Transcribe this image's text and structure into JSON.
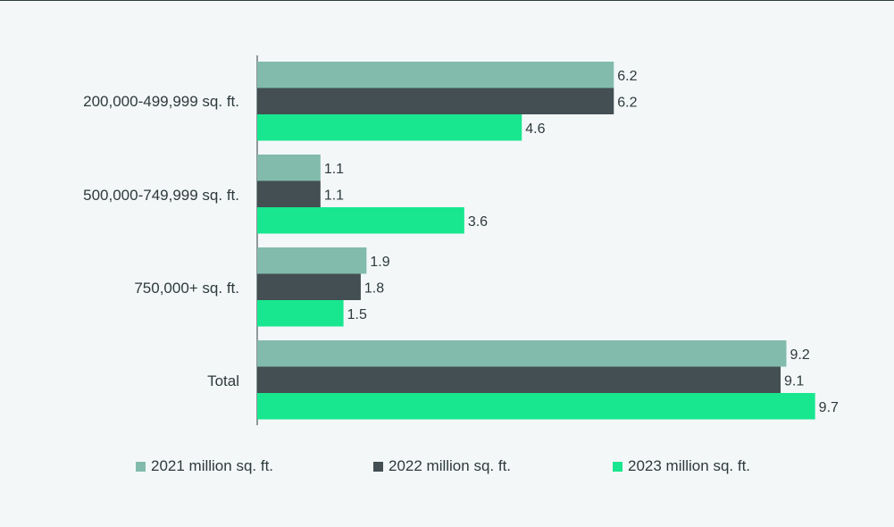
{
  "chart_data": {
    "type": "bar",
    "orientation": "horizontal",
    "categories": [
      "200,000-499,999 sq. ft.",
      "500,000-749,999 sq. ft.",
      "750,000+ sq. ft.",
      "Total"
    ],
    "series": [
      {
        "name": "2021 million sq. ft.",
        "color": "#82bbac",
        "values": [
          6.2,
          1.1,
          1.9,
          9.2
        ]
      },
      {
        "name": "2022 million sq. ft.",
        "color": "#434f52",
        "values": [
          6.2,
          1.1,
          1.8,
          9.1
        ]
      },
      {
        "name": "2023 million sq. ft.",
        "color": "#18e78f",
        "values": [
          4.6,
          3.6,
          1.5,
          9.7
        ]
      }
    ],
    "xlim": [
      0,
      10
    ],
    "grid": false,
    "legend_position": "bottom"
  },
  "colors": {
    "background": "#f3f7f8",
    "axis": "#2d3a3c",
    "text": "#2d3a3c"
  }
}
